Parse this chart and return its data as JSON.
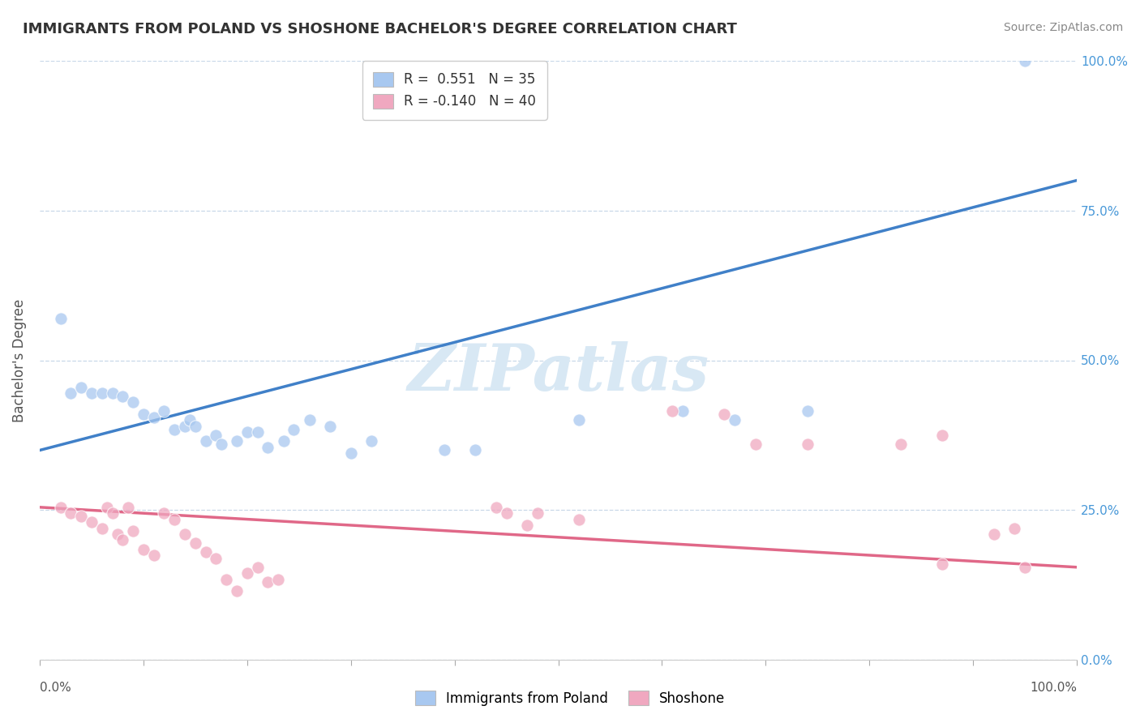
{
  "title": "IMMIGRANTS FROM POLAND VS SHOSHONE BACHELOR'S DEGREE CORRELATION CHART",
  "source": "Source: ZipAtlas.com",
  "ylabel": "Bachelor's Degree",
  "xlim": [
    0.0,
    1.0
  ],
  "ylim": [
    0.0,
    1.0
  ],
  "ytick_positions": [
    0.0,
    0.25,
    0.5,
    0.75,
    1.0
  ],
  "ytick_labels": [
    "0.0%",
    "25.0%",
    "50.0%",
    "75.0%",
    "100.0%"
  ],
  "xtick_positions": [
    0.0,
    0.1,
    0.2,
    0.3,
    0.4,
    0.5,
    0.6,
    0.7,
    0.8,
    0.9,
    1.0
  ],
  "poland_R": "0.551",
  "poland_N": "35",
  "shoshone_R": "-0.140",
  "shoshone_N": "40",
  "poland_color": "#a8c8f0",
  "shoshone_color": "#f0a8c0",
  "poland_line_color": "#4080c8",
  "shoshone_line_color": "#e06888",
  "background_color": "#ffffff",
  "grid_color": "#c8d8e8",
  "watermark": "ZIPatlas",
  "watermark_color": "#d8e8f4",
  "right_axis_color": "#4898d8",
  "poland_points": [
    [
      0.02,
      0.57
    ],
    [
      0.03,
      0.445
    ],
    [
      0.04,
      0.455
    ],
    [
      0.05,
      0.445
    ],
    [
      0.06,
      0.445
    ],
    [
      0.07,
      0.445
    ],
    [
      0.08,
      0.44
    ],
    [
      0.09,
      0.43
    ],
    [
      0.1,
      0.41
    ],
    [
      0.11,
      0.405
    ],
    [
      0.12,
      0.415
    ],
    [
      0.13,
      0.385
    ],
    [
      0.14,
      0.39
    ],
    [
      0.145,
      0.4
    ],
    [
      0.15,
      0.39
    ],
    [
      0.16,
      0.365
    ],
    [
      0.17,
      0.375
    ],
    [
      0.175,
      0.36
    ],
    [
      0.19,
      0.365
    ],
    [
      0.2,
      0.38
    ],
    [
      0.21,
      0.38
    ],
    [
      0.22,
      0.355
    ],
    [
      0.235,
      0.365
    ],
    [
      0.245,
      0.385
    ],
    [
      0.26,
      0.4
    ],
    [
      0.28,
      0.39
    ],
    [
      0.3,
      0.345
    ],
    [
      0.32,
      0.365
    ],
    [
      0.39,
      0.35
    ],
    [
      0.42,
      0.35
    ],
    [
      0.52,
      0.4
    ],
    [
      0.62,
      0.415
    ],
    [
      0.74,
      0.415
    ],
    [
      0.67,
      0.4
    ],
    [
      0.95,
      1.0
    ]
  ],
  "shoshone_points": [
    [
      0.02,
      0.255
    ],
    [
      0.03,
      0.245
    ],
    [
      0.04,
      0.24
    ],
    [
      0.05,
      0.23
    ],
    [
      0.06,
      0.22
    ],
    [
      0.065,
      0.255
    ],
    [
      0.07,
      0.245
    ],
    [
      0.075,
      0.21
    ],
    [
      0.08,
      0.2
    ],
    [
      0.085,
      0.255
    ],
    [
      0.09,
      0.215
    ],
    [
      0.1,
      0.185
    ],
    [
      0.11,
      0.175
    ],
    [
      0.12,
      0.245
    ],
    [
      0.13,
      0.235
    ],
    [
      0.14,
      0.21
    ],
    [
      0.15,
      0.195
    ],
    [
      0.16,
      0.18
    ],
    [
      0.17,
      0.17
    ],
    [
      0.18,
      0.135
    ],
    [
      0.19,
      0.115
    ],
    [
      0.2,
      0.145
    ],
    [
      0.21,
      0.155
    ],
    [
      0.22,
      0.13
    ],
    [
      0.23,
      0.135
    ],
    [
      0.44,
      0.255
    ],
    [
      0.45,
      0.245
    ],
    [
      0.47,
      0.225
    ],
    [
      0.48,
      0.245
    ],
    [
      0.52,
      0.235
    ],
    [
      0.61,
      0.415
    ],
    [
      0.66,
      0.41
    ],
    [
      0.69,
      0.36
    ],
    [
      0.74,
      0.36
    ],
    [
      0.83,
      0.36
    ],
    [
      0.87,
      0.375
    ],
    [
      0.92,
      0.21
    ],
    [
      0.94,
      0.22
    ],
    [
      0.87,
      0.16
    ],
    [
      0.95,
      0.155
    ]
  ],
  "blue_line_x0": 0.0,
  "blue_line_y0": 0.35,
  "blue_line_x1": 1.0,
  "blue_line_y1": 0.8,
  "pink_line_x0": 0.0,
  "pink_line_y0": 0.255,
  "pink_line_x1": 1.0,
  "pink_line_y1": 0.155
}
